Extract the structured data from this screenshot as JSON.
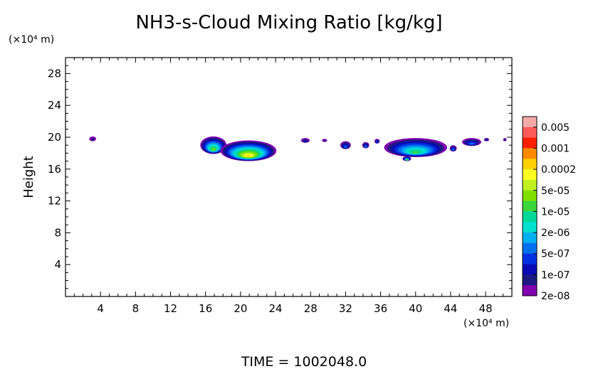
{
  "chart_data": {
    "type": "heatmap",
    "title": "NH3-s-Cloud Mixing Ratio [kg/kg]",
    "ylabel": "Height",
    "y_unit": "(×10⁴ m)",
    "x_unit": "(×10⁴ m)",
    "xlim": [
      0,
      51
    ],
    "ylim": [
      0,
      30
    ],
    "x_ticks": [
      4,
      8,
      12,
      16,
      20,
      24,
      28,
      32,
      36,
      40,
      44,
      48
    ],
    "y_ticks": [
      4,
      8,
      12,
      16,
      20,
      24,
      28
    ],
    "footer": "TIME =  1002048.0",
    "colorbar": {
      "labels": [
        "0.005",
        "0.001",
        "0.0002",
        "5e-05",
        "1e-05",
        "2e-06",
        "5e-07",
        "1e-07",
        "2e-08"
      ],
      "colors": [
        "#f4a9a9",
        "#fc5a5a",
        "#ff1f00",
        "#ff8a00",
        "#ffcf00",
        "#ffff20",
        "#c0f020",
        "#7fe000",
        "#3ad63a",
        "#00d89a",
        "#00e0d0",
        "#00b0f0",
        "#0070f0",
        "#0030e0",
        "#0a0ab4",
        "#1a1a80",
        "#8000b0"
      ]
    },
    "blobs": [
      {
        "x": 3.1,
        "y": 19.8,
        "rx": 0.4,
        "ry": 0.3,
        "level": 2
      },
      {
        "x": 16.9,
        "y": 19.0,
        "rx": 1.5,
        "ry": 1.1,
        "level": 10
      },
      {
        "x": 20.9,
        "y": 18.3,
        "rx": 3.2,
        "ry": 1.3,
        "level": 13
      },
      {
        "x": 27.4,
        "y": 19.6,
        "rx": 0.5,
        "ry": 0.3,
        "level": 3
      },
      {
        "x": 29.6,
        "y": 19.6,
        "rx": 0.3,
        "ry": 0.2,
        "level": 2
      },
      {
        "x": 32.0,
        "y": 19.0,
        "rx": 0.6,
        "ry": 0.5,
        "level": 5
      },
      {
        "x": 34.3,
        "y": 19.0,
        "rx": 0.4,
        "ry": 0.4,
        "level": 5
      },
      {
        "x": 35.6,
        "y": 19.5,
        "rx": 0.3,
        "ry": 0.3,
        "level": 4
      },
      {
        "x": 40.0,
        "y": 18.7,
        "rx": 3.6,
        "ry": 1.2,
        "level": 9
      },
      {
        "x": 39.0,
        "y": 17.3,
        "rx": 0.5,
        "ry": 0.3,
        "level": 9
      },
      {
        "x": 44.3,
        "y": 18.6,
        "rx": 0.4,
        "ry": 0.4,
        "level": 5
      },
      {
        "x": 46.4,
        "y": 19.4,
        "rx": 1.1,
        "ry": 0.5,
        "level": 5
      },
      {
        "x": 48.1,
        "y": 19.7,
        "rx": 0.3,
        "ry": 0.2,
        "level": 3
      },
      {
        "x": 50.2,
        "y": 19.7,
        "rx": 0.2,
        "ry": 0.2,
        "level": 2
      }
    ]
  }
}
